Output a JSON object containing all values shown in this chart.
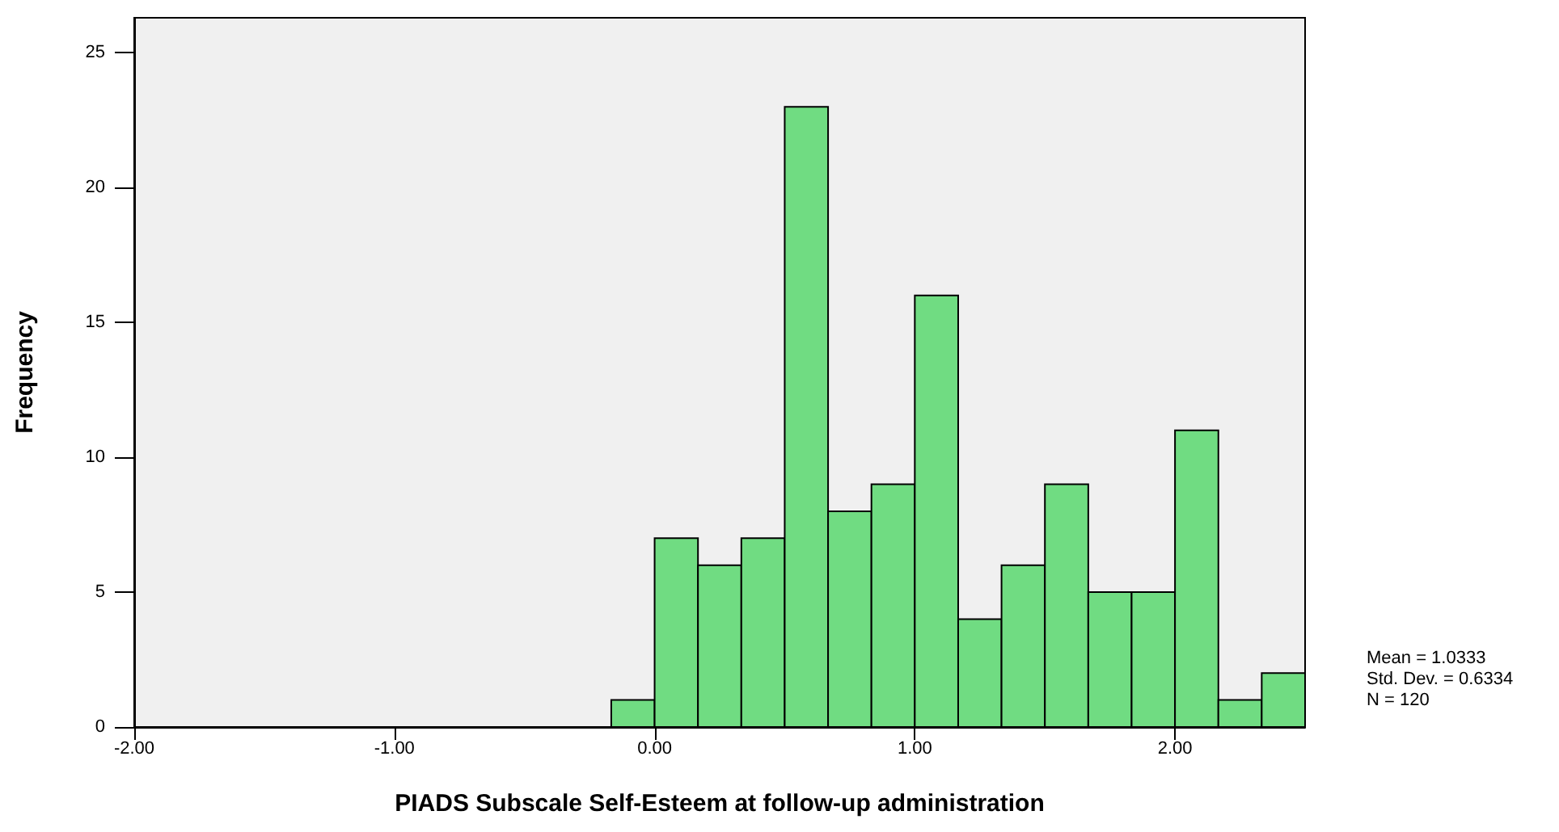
{
  "chart_data": {
    "type": "histogram",
    "xlabel": "PIADS Subscale Self-Esteem at follow-up administration",
    "ylabel": "Frequency",
    "bins": [
      -0.1667,
      0,
      0.1667,
      0.3333,
      0.5,
      0.6667,
      0.8333,
      1,
      1.1667,
      1.3333,
      1.5,
      1.6667,
      1.8333,
      2,
      2.1667,
      2.3333,
      2.5
    ],
    "values": [
      1,
      7,
      6,
      7,
      23,
      8,
      9,
      16,
      4,
      6,
      9,
      5,
      5,
      11,
      1,
      2
    ],
    "color": "#70dc82",
    "xlim": [
      -2,
      2.5
    ],
    "xticks": [
      {
        "value": -2,
        "label": "-2.00"
      },
      {
        "value": -1,
        "label": "-1.00"
      },
      {
        "value": 0,
        "label": "0.00"
      },
      {
        "value": 1,
        "label": "1.00"
      },
      {
        "value": 2,
        "label": "2.00"
      }
    ],
    "ylim": [
      0,
      26.3
    ],
    "yticks": [
      0,
      5,
      10,
      15,
      20,
      25
    ],
    "grid": false,
    "annotations": [
      "Mean = 1.0333",
      "Std. Dev. = 0.6334",
      "N = 120"
    ]
  }
}
